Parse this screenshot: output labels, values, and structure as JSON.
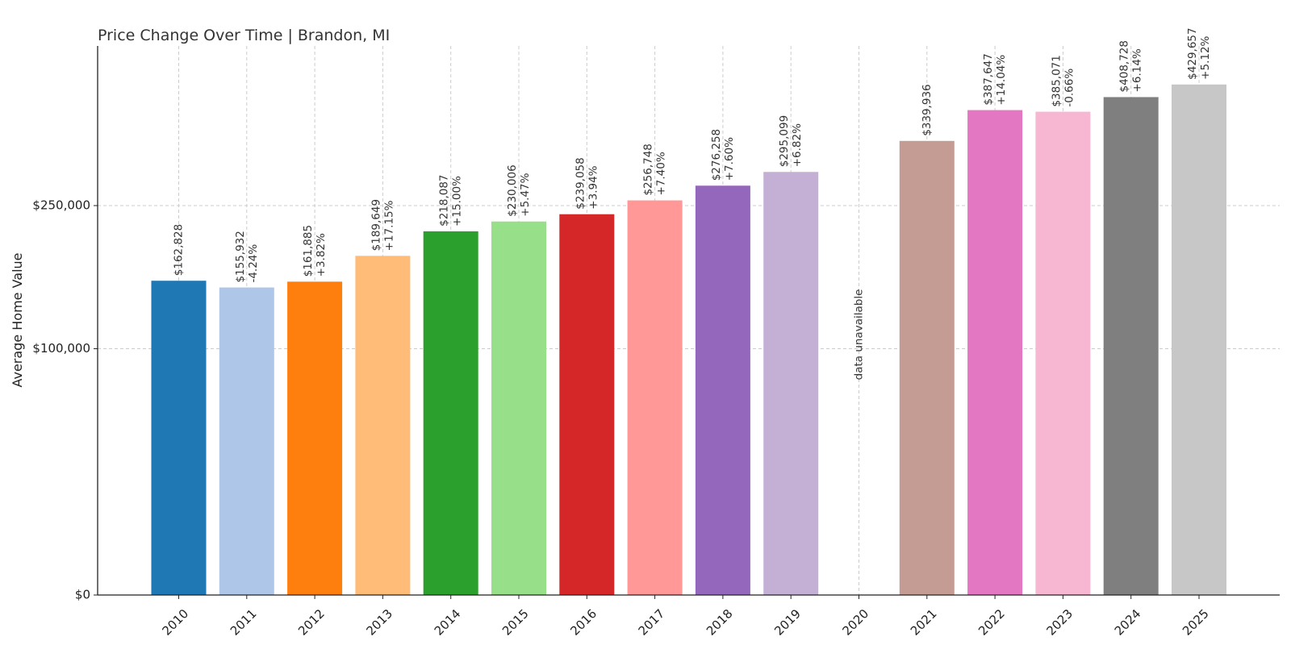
{
  "chart_data": {
    "type": "bar",
    "title": "Price Change Over Time | Brandon, MI",
    "xlabel": "",
    "ylabel": "Average Home Value",
    "ylim": [
      0,
      450000
    ],
    "yaxis_scale": "sqrt",
    "yticks": [
      {
        "value": 0,
        "label": "$0"
      },
      {
        "value": 100000,
        "label": "$100,000"
      },
      {
        "value": 250000,
        "label": "$250,000"
      }
    ],
    "grid": true,
    "categories": [
      "2010",
      "2011",
      "2012",
      "2013",
      "2014",
      "2015",
      "2016",
      "2017",
      "2018",
      "2019",
      "2020",
      "2021",
      "2022",
      "2023",
      "2024",
      "2025"
    ],
    "values": [
      162828,
      155932,
      161885,
      189649,
      218087,
      230006,
      239058,
      256748,
      276258,
      295099,
      null,
      339936,
      387647,
      385071,
      408728,
      429657
    ],
    "value_labels": [
      "$162,828",
      "$155,932",
      "$161,885",
      "$189,649",
      "$218,087",
      "$230,006",
      "$239,058",
      "$256,748",
      "$276,258",
      "$295,099",
      "",
      "$339,936",
      "$387,647",
      "$385,071",
      "$408,728",
      "$429,657"
    ],
    "change_labels": [
      "",
      "-4.24%",
      "+3.82%",
      "+17.15%",
      "+15.00%",
      "+5.47%",
      "+3.94%",
      "+7.40%",
      "+7.60%",
      "+6.82%",
      "",
      "",
      "+14.04%",
      "-0.66%",
      "+6.14%",
      "+5.12%"
    ],
    "missing_label": "data unavailable",
    "colors": [
      "#1f77b4",
      "#aec7e8",
      "#ff7f0e",
      "#ffbb78",
      "#2ca02c",
      "#98df8a",
      "#d62728",
      "#ff9896",
      "#9467bd",
      "#c5b0d5",
      "#8c564b",
      "#c49c94",
      "#e377c2",
      "#f7b6d2",
      "#7f7f7f",
      "#c7c7c7"
    ]
  }
}
